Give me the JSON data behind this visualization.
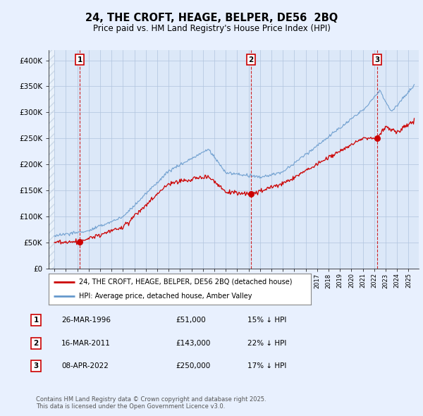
{
  "title": "24, THE CROFT, HEAGE, BELPER, DE56  2BQ",
  "subtitle": "Price paid vs. HM Land Registry's House Price Index (HPI)",
  "bg_color": "#e8f0fe",
  "plot_bg_color": "#dce8f8",
  "hatch_color": "#b8c8dc",
  "grid_color": "#b0c4de",
  "line_color_red": "#cc0000",
  "line_color_blue": "#6699cc",
  "sales": [
    {
      "year": 1996.23,
      "price": 51000,
      "label": "1"
    },
    {
      "year": 2011.21,
      "price": 143000,
      "label": "2"
    },
    {
      "year": 2022.27,
      "price": 250000,
      "label": "3"
    }
  ],
  "sale_table": [
    {
      "num": "1",
      "date": "26-MAR-1996",
      "price": "£51,000",
      "hpi": "15% ↓ HPI"
    },
    {
      "num": "2",
      "date": "16-MAR-2011",
      "price": "£143,000",
      "hpi": "22% ↓ HPI"
    },
    {
      "num": "3",
      "date": "08-APR-2022",
      "price": "£250,000",
      "hpi": "17% ↓ HPI"
    }
  ],
  "legend_entries": [
    "24, THE CROFT, HEAGE, BELPER, DE56 2BQ (detached house)",
    "HPI: Average price, detached house, Amber Valley"
  ],
  "footer": "Contains HM Land Registry data © Crown copyright and database right 2025.\nThis data is licensed under the Open Government Licence v3.0.",
  "ylim": [
    0,
    420000
  ],
  "yticks": [
    0,
    50000,
    100000,
    150000,
    200000,
    250000,
    300000,
    350000,
    400000
  ],
  "ytick_labels": [
    "£0",
    "£50K",
    "£100K",
    "£150K",
    "£200K",
    "£250K",
    "£300K",
    "£350K",
    "£400K"
  ],
  "xmin": 1993.5,
  "xmax": 2025.9
}
